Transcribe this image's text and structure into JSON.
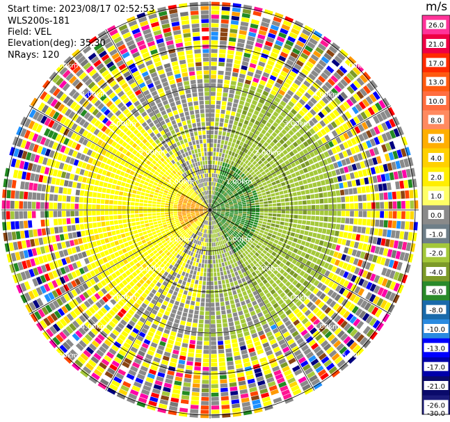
{
  "info": {
    "start_time": "Start time: 2023/08/17 02:52:53",
    "instrument": "WLS200s-181",
    "field": "Field: VEL",
    "elevation": "Elevation(deg): 35.30",
    "nrays": "NRays: 120"
  },
  "colorbar": {
    "unit": "m/s",
    "levels": [
      {
        "label": "26.0",
        "color": "#ff3399"
      },
      {
        "label": "21.0",
        "color": "#ee0044"
      },
      {
        "label": "17.0",
        "color": "#ff2a00"
      },
      {
        "label": "13.0",
        "color": "#ff5a10"
      },
      {
        "label": "10.0",
        "color": "#ff6e40"
      },
      {
        "label": "8.0",
        "color": "#ff8a60"
      },
      {
        "label": "6.0",
        "color": "#ffae00"
      },
      {
        "label": "4.0",
        "color": "#ffd000"
      },
      {
        "label": "2.0",
        "color": "#ffee00"
      },
      {
        "label": "1.0",
        "color": "#ffff66"
      },
      {
        "label": "0.0",
        "color": "#8a8a8a"
      },
      {
        "label": "-1.0",
        "color": "#6e7e88"
      },
      {
        "label": "-2.0",
        "color": "#a4c83a"
      },
      {
        "label": "-4.0",
        "color": "#7c9a28"
      },
      {
        "label": "-6.0",
        "color": "#2a8a2a"
      },
      {
        "label": "-8.0",
        "color": "#1a6aaa"
      },
      {
        "label": "-10.0",
        "color": "#2a8ae0"
      },
      {
        "label": "-13.0",
        "color": "#0000ff"
      },
      {
        "label": "-17.0",
        "color": "#0000aa"
      },
      {
        "label": "-21.0",
        "color": "#0a0a6a"
      },
      {
        "label": "-26.0",
        "color": "#1a1a7a"
      },
      {
        "label": "-30.0",
        "color": ""
      }
    ]
  },
  "chart_data": {
    "type": "heatmap",
    "field": "VEL",
    "unit": "m/s",
    "nrays": 120,
    "rings": [
      {
        "label": "1.00km"
      },
      {
        "label": "2.00km"
      },
      {
        "label": "3.00km"
      },
      {
        "label": "4.00km"
      },
      {
        "label": "5.00km"
      }
    ],
    "palette_hex": [
      "#ffff00",
      "#ffdd00",
      "#ffd700",
      "#ff9900",
      "#8a8a8a",
      "#777777",
      "#a4c83a",
      "#7c9a28",
      "#228b22",
      "#1e90ff",
      "#0000ff",
      "#000080",
      "#ff1493",
      "#ff00aa",
      "#ff0000",
      "#ff4500",
      "#8b4513",
      "#ffffff"
    ]
  }
}
